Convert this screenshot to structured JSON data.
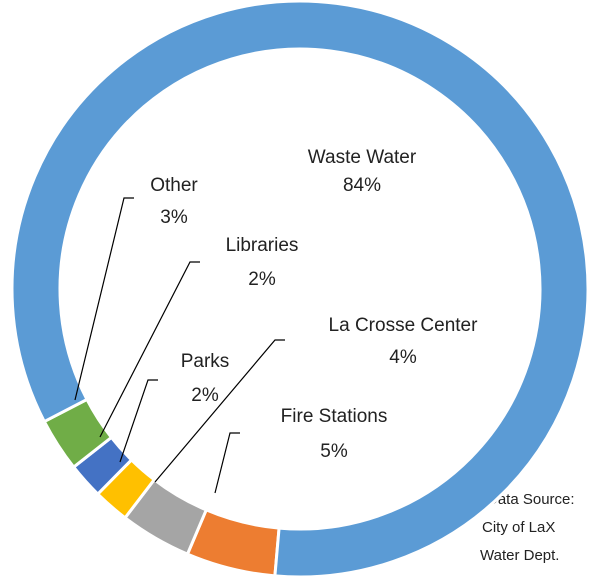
{
  "chart_data": {
    "type": "donut",
    "categories": [
      "Fire Stations",
      "La Crosse Center",
      "Parks",
      "Libraries",
      "Other",
      "Waste Water"
    ],
    "values": [
      5,
      4,
      2,
      2,
      3,
      84
    ],
    "value_labels": [
      "5%",
      "4%",
      "2%",
      "2%",
      "3%",
      "84%"
    ],
    "colors": [
      "#ed7d31",
      "#a5a5a5",
      "#ffc000",
      "#4472c4",
      "#70ad47",
      "#5b9bd5"
    ],
    "note": [
      "Data Source:",
      "City of LaX",
      "Water Dept."
    ]
  }
}
